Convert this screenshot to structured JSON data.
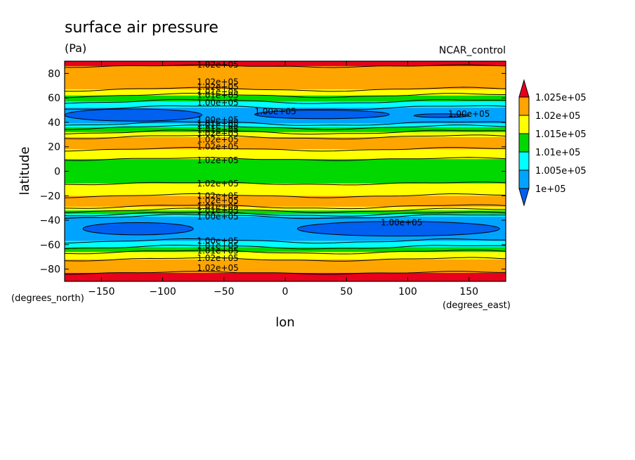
{
  "chart_data": {
    "type": "contour",
    "title": "surface air pressure",
    "units": "(Pa)",
    "run_label": "NCAR_control",
    "xlabel": "lon",
    "ylabel": "latitude",
    "x_units": "(degrees_east)",
    "y_units": "(degrees_north)",
    "xlim": [
      -180,
      180
    ],
    "ylim": [
      -90,
      90
    ],
    "x_ticks": [
      -150,
      -100,
      -50,
      0,
      50,
      100,
      150
    ],
    "y_ticks": [
      -80,
      -60,
      -40,
      -20,
      0,
      20,
      40,
      60,
      80
    ],
    "legend": {
      "position": "right",
      "levels": [
        "1.025e+05",
        "1.02e+05",
        "1.015e+05",
        "1.01e+05",
        "1.005e+05",
        "1e+05"
      ],
      "colors": {
        "above_1.025e+05": "#e8001c",
        "1.02e+05-1.025e+05": "#ffa500",
        "1.015e+05-1.02e+05": "#ffff00",
        "1.01e+05-1.015e+05": "#00d800",
        "1.005e+05-1.01e+05": "#00ffff",
        "1e+05-1.005e+05": "#00a4ff",
        "below_1e+05": "#0060f0"
      }
    },
    "bands_by_latitude": [
      {
        "lat": [
          -90,
          -83
        ],
        "value_range": "above 1.025e+05"
      },
      {
        "lat": [
          -83,
          -72
        ],
        "value_range": "1.02e+05-1.025e+05"
      },
      {
        "lat": [
          -72,
          -66
        ],
        "value_range": "1.015e+05-1.02e+05"
      },
      {
        "lat": [
          -66,
          -62
        ],
        "value_range": "1.01e+05-1.015e+05"
      },
      {
        "lat": [
          -62,
          -57
        ],
        "value_range": "1.005e+05-1.01e+05"
      },
      {
        "lat": [
          -57,
          -37
        ],
        "value_range": "1e+05-1.005e+05"
      },
      {
        "lat": [
          -37,
          -35
        ],
        "value_range": "1.005e+05-1.01e+05"
      },
      {
        "lat": [
          -35,
          -32
        ],
        "value_range": "1.01e+05-1.015e+05"
      },
      {
        "lat": [
          -32,
          -29
        ],
        "value_range": "1.015e+05-1.02e+05"
      },
      {
        "lat": [
          -29,
          -20
        ],
        "value_range": "1.02e+05-1.025e+05"
      },
      {
        "lat": [
          -20,
          -10
        ],
        "value_range": "1.015e+05-1.02e+05"
      },
      {
        "lat": [
          -10,
          10
        ],
        "value_range": "1.01e+05-1.015e+05"
      },
      {
        "lat": [
          10,
          18
        ],
        "value_range": "1.015e+05-1.02e+05"
      },
      {
        "lat": [
          18,
          28
        ],
        "value_range": "1.02e+05-1.025e+05"
      },
      {
        "lat": [
          28,
          32
        ],
        "value_range": "1.015e+05-1.02e+05"
      },
      {
        "lat": [
          32,
          36
        ],
        "value_range": "1.01e+05-1.015e+05"
      },
      {
        "lat": [
          36,
          39
        ],
        "value_range": "1.005e+05-1.01e+05"
      },
      {
        "lat": [
          39,
          52
        ],
        "value_range": "1e+05-1.005e+05"
      },
      {
        "lat": [
          52,
          57
        ],
        "value_range": "1.005e+05-1.01e+05"
      },
      {
        "lat": [
          57,
          62
        ],
        "value_range": "1.01e+05-1.015e+05"
      },
      {
        "lat": [
          62,
          67
        ],
        "value_range": "1.015e+05-1.02e+05"
      },
      {
        "lat": [
          67,
          86
        ],
        "value_range": "1.02e+05-1.025e+05"
      },
      {
        "lat": [
          86,
          90
        ],
        "value_range": "above 1.025e+05"
      }
    ],
    "low_pressure_cells": [
      {
        "lat_range": [
          41,
          51
        ],
        "lon_range": [
          -180,
          -68
        ],
        "value_range": "below 1e+05"
      },
      {
        "lat_range": [
          43,
          50
        ],
        "lon_range": [
          -25,
          85
        ],
        "value_range": "below 1e+05"
      },
      {
        "lat_range": [
          44,
          47
        ],
        "lon_range": [
          105,
          150
        ],
        "value_range": "below 1e+05"
      },
      {
        "lat_range": [
          -52,
          -42
        ],
        "lon_range": [
          -165,
          -75
        ],
        "value_range": "below 1e+05"
      },
      {
        "lat_range": [
          -53,
          -41
        ],
        "lon_range": [
          10,
          175
        ],
        "value_range": "below 1e+05"
      }
    ],
    "contour_labels": [
      {
        "text": "1.02e+05",
        "lon": -55,
        "lat": 87
      },
      {
        "text": "1.02e+05",
        "lon": -55,
        "lat": 73
      },
      {
        "text": "1.02e+05",
        "lon": -55,
        "lat": 69
      },
      {
        "text": "1.01e+05",
        "lon": -55,
        "lat": 65
      },
      {
        "text": "1.01e+05",
        "lon": -55,
        "lat": 62
      },
      {
        "text": "1.00e+05",
        "lon": -55,
        "lat": 56
      },
      {
        "text": "1.00e+05",
        "lon": -8,
        "lat": 49
      },
      {
        "text": "1.00e+05",
        "lon": 150,
        "lat": 47
      },
      {
        "text": "1.00e+05",
        "lon": -55,
        "lat": 42
      },
      {
        "text": "1.01e+05",
        "lon": -55,
        "lat": 39
      },
      {
        "text": "1.01e+05",
        "lon": -55,
        "lat": 37
      },
      {
        "text": "1.01e+05",
        "lon": -55,
        "lat": 34
      },
      {
        "text": "1.02e+05",
        "lon": -55,
        "lat": 31
      },
      {
        "text": "1.02e+05",
        "lon": -55,
        "lat": 26
      },
      {
        "text": "1.02e+05",
        "lon": -55,
        "lat": 20
      },
      {
        "text": "1.02e+05",
        "lon": -55,
        "lat": 9
      },
      {
        "text": "1.02e+05",
        "lon": -55,
        "lat": -10
      },
      {
        "text": "1.02e+05",
        "lon": -55,
        "lat": -20
      },
      {
        "text": "1.02e+05",
        "lon": -55,
        "lat": -24
      },
      {
        "text": "1.01e+05",
        "lon": -55,
        "lat": -29
      },
      {
        "text": "1.01e+05",
        "lon": -55,
        "lat": -32
      },
      {
        "text": "1.00e+05",
        "lon": -55,
        "lat": -37
      },
      {
        "text": "1.00e+05",
        "lon": 95,
        "lat": -42
      },
      {
        "text": "1.00e+05",
        "lon": -55,
        "lat": -57
      },
      {
        "text": "1.01e+05",
        "lon": -55,
        "lat": -61
      },
      {
        "text": "1.01e+05",
        "lon": -55,
        "lat": -65
      },
      {
        "text": "1.02e+05",
        "lon": -55,
        "lat": -71
      },
      {
        "text": "1.02e+05",
        "lon": -55,
        "lat": -79
      }
    ]
  }
}
